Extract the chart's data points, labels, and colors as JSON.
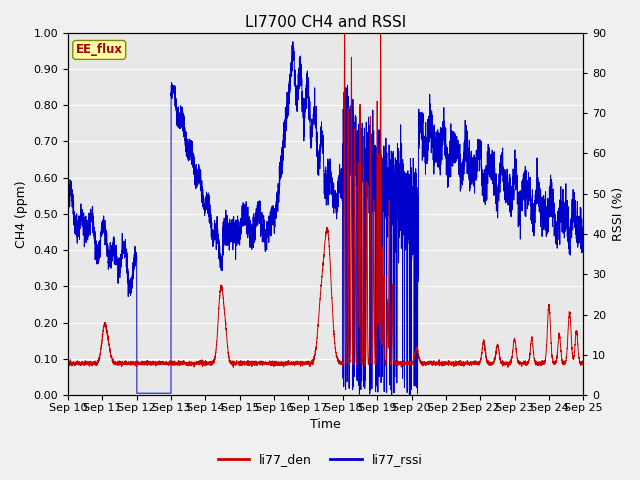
{
  "title": "LI7700 CH4 and RSSI",
  "xlabel": "Time",
  "ylabel_left": "CH4 (ppm)",
  "ylabel_right": "RSSI (%)",
  "annotation": "EE_flux",
  "legend": [
    "li77_den",
    "li77_rssi"
  ],
  "color_den": "#cc0000",
  "color_rssi": "#0000cc",
  "ylim_left": [
    0.0,
    1.0
  ],
  "ylim_right": [
    0,
    90
  ],
  "yticks_left": [
    0.0,
    0.1,
    0.2,
    0.3,
    0.4,
    0.5,
    0.6,
    0.7,
    0.8,
    0.9,
    1.0
  ],
  "yticks_right": [
    0,
    10,
    20,
    30,
    40,
    50,
    60,
    70,
    80,
    90
  ],
  "background_color": "#e8e8e8",
  "grid_color": "#ffffff",
  "fig_background": "#f0f0f0",
  "title_fontsize": 11,
  "axis_label_fontsize": 9,
  "tick_label_fontsize": 8,
  "linewidth": 0.7,
  "n_days": 15,
  "xtick_days": [
    0,
    1,
    2,
    3,
    4,
    5,
    6,
    7,
    8,
    9,
    10,
    11,
    12,
    13,
    14,
    15
  ],
  "xtick_labels": [
    "Sep 10",
    "Sep 11",
    "Sep 12",
    "Sep 13",
    "Sep 14",
    "Sep 15",
    "Sep 16",
    "Sep 17",
    "Sep 18",
    "Sep 19",
    "Sep 20",
    "Sep 21",
    "Sep 22",
    "Sep 23",
    "Sep 24",
    "Sep 25"
  ]
}
